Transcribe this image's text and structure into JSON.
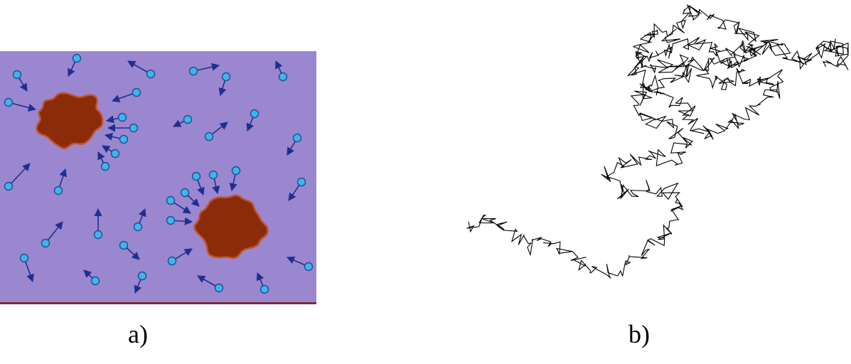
{
  "figure": {
    "panel_a": {
      "caption": "a)",
      "colors": {
        "background": "#9b87cf",
        "bottom_edge": "#7a2a3a",
        "cluster_fill": "#8a2c0a",
        "cluster_outline": "#c0532a",
        "particle_fill": "#3fb4ef",
        "particle_stroke": "#1d4f8c",
        "arrow": "#1f2f8f"
      }
    },
    "panel_b": {
      "caption": "b)",
      "colors": {
        "path": "#000000"
      }
    }
  }
}
